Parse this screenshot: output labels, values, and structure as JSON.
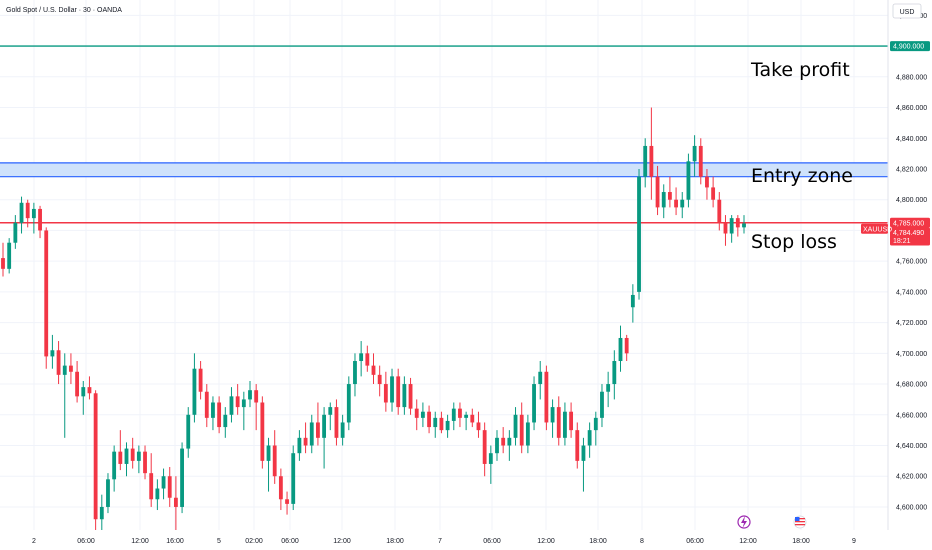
{
  "header": {
    "title": "Gold Spot / U.S. Dollar · 30 · OANDA",
    "currency": "USD"
  },
  "colors": {
    "up": "#089981",
    "down": "#f23645",
    "tp": "#089981",
    "sl": "#f23645",
    "zone_fill": "#cfe2fb",
    "zone_line": "#2962ff"
  },
  "chart_data": {
    "type": "candlestick",
    "title": "Gold Spot / U.S. Dollar · 30 · OANDA",
    "ylim": [
      4585,
      4930
    ],
    "y_ticks": [
      "4,920.000",
      "4,900.000",
      "4,880.000",
      "4,860.000",
      "4,840.000",
      "4,820.000",
      "4,800.000",
      "4,780.000",
      "4,760.000",
      "4,740.000",
      "4,720.000",
      "4,700.000",
      "4,680.000",
      "4,660.000",
      "4,640.000",
      "4,620.000",
      "4,600.000"
    ],
    "x_ticks": [
      "2",
      "06:00",
      "12:00",
      "16:00",
      "5",
      "02:00",
      "06:00",
      "12:00",
      "18:00",
      "7",
      "06:00",
      "12:00",
      "18:00",
      "8",
      "06:00",
      "12:00",
      "18:00",
      "9"
    ],
    "candles": [
      {
        "o": 4762,
        "h": 4772,
        "l": 4750,
        "c": 4755
      },
      {
        "o": 4755,
        "h": 4775,
        "l": 4752,
        "c": 4772
      },
      {
        "o": 4772,
        "h": 4790,
        "l": 4768,
        "c": 4785
      },
      {
        "o": 4785,
        "h": 4802,
        "l": 4778,
        "c": 4798
      },
      {
        "o": 4798,
        "h": 4800,
        "l": 4782,
        "c": 4788
      },
      {
        "o": 4788,
        "h": 4798,
        "l": 4778,
        "c": 4794
      },
      {
        "o": 4794,
        "h": 4796,
        "l": 4775,
        "c": 4780
      },
      {
        "o": 4780,
        "h": 4782,
        "l": 4690,
        "c": 4698
      },
      {
        "o": 4698,
        "h": 4712,
        "l": 4690,
        "c": 4702
      },
      {
        "o": 4702,
        "h": 4708,
        "l": 4680,
        "c": 4686
      },
      {
        "o": 4686,
        "h": 4700,
        "l": 4645,
        "c": 4692
      },
      {
        "o": 4692,
        "h": 4700,
        "l": 4680,
        "c": 4688
      },
      {
        "o": 4688,
        "h": 4695,
        "l": 4668,
        "c": 4672
      },
      {
        "o": 4672,
        "h": 4682,
        "l": 4660,
        "c": 4678
      },
      {
        "o": 4678,
        "h": 4685,
        "l": 4670,
        "c": 4674
      },
      {
        "o": 4674,
        "h": 4676,
        "l": 4585,
        "c": 4592
      },
      {
        "o": 4592,
        "h": 4608,
        "l": 4585,
        "c": 4600
      },
      {
        "o": 4600,
        "h": 4622,
        "l": 4596,
        "c": 4618
      },
      {
        "o": 4618,
        "h": 4640,
        "l": 4610,
        "c": 4636
      },
      {
        "o": 4636,
        "h": 4650,
        "l": 4624,
        "c": 4628
      },
      {
        "o": 4628,
        "h": 4642,
        "l": 4620,
        "c": 4638
      },
      {
        "o": 4638,
        "h": 4645,
        "l": 4625,
        "c": 4630
      },
      {
        "o": 4630,
        "h": 4640,
        "l": 4622,
        "c": 4636
      },
      {
        "o": 4636,
        "h": 4640,
        "l": 4618,
        "c": 4622
      },
      {
        "o": 4622,
        "h": 4635,
        "l": 4600,
        "c": 4605
      },
      {
        "o": 4605,
        "h": 4618,
        "l": 4598,
        "c": 4612
      },
      {
        "o": 4612,
        "h": 4625,
        "l": 4605,
        "c": 4620
      },
      {
        "o": 4620,
        "h": 4626,
        "l": 4600,
        "c": 4606
      },
      {
        "o": 4606,
        "h": 4620,
        "l": 4585,
        "c": 4600
      },
      {
        "o": 4600,
        "h": 4642,
        "l": 4596,
        "c": 4638
      },
      {
        "o": 4638,
        "h": 4665,
        "l": 4632,
        "c": 4660
      },
      {
        "o": 4660,
        "h": 4700,
        "l": 4655,
        "c": 4690
      },
      {
        "o": 4690,
        "h": 4695,
        "l": 4670,
        "c": 4675
      },
      {
        "o": 4675,
        "h": 4680,
        "l": 4652,
        "c": 4658
      },
      {
        "o": 4658,
        "h": 4672,
        "l": 4650,
        "c": 4668
      },
      {
        "o": 4668,
        "h": 4672,
        "l": 4648,
        "c": 4652
      },
      {
        "o": 4652,
        "h": 4665,
        "l": 4645,
        "c": 4660
      },
      {
        "o": 4660,
        "h": 4678,
        "l": 4655,
        "c": 4672
      },
      {
        "o": 4672,
        "h": 4680,
        "l": 4660,
        "c": 4665
      },
      {
        "o": 4665,
        "h": 4675,
        "l": 4650,
        "c": 4670
      },
      {
        "o": 4670,
        "h": 4682,
        "l": 4665,
        "c": 4676
      },
      {
        "o": 4676,
        "h": 4680,
        "l": 4650,
        "c": 4668
      },
      {
        "o": 4668,
        "h": 4672,
        "l": 4625,
        "c": 4630
      },
      {
        "o": 4630,
        "h": 4645,
        "l": 4610,
        "c": 4640
      },
      {
        "o": 4640,
        "h": 4650,
        "l": 4615,
        "c": 4620
      },
      {
        "o": 4620,
        "h": 4625,
        "l": 4598,
        "c": 4605
      },
      {
        "o": 4605,
        "h": 4610,
        "l": 4595,
        "c": 4602
      },
      {
        "o": 4602,
        "h": 4640,
        "l": 4598,
        "c": 4635
      },
      {
        "o": 4635,
        "h": 4650,
        "l": 4630,
        "c": 4645
      },
      {
        "o": 4645,
        "h": 4655,
        "l": 4635,
        "c": 4640
      },
      {
        "o": 4640,
        "h": 4660,
        "l": 4635,
        "c": 4655
      },
      {
        "o": 4655,
        "h": 4668,
        "l": 4640,
        "c": 4645
      },
      {
        "o": 4645,
        "h": 4665,
        "l": 4625,
        "c": 4660
      },
      {
        "o": 4660,
        "h": 4668,
        "l": 4650,
        "c": 4665
      },
      {
        "o": 4665,
        "h": 4670,
        "l": 4640,
        "c": 4645
      },
      {
        "o": 4645,
        "h": 4660,
        "l": 4640,
        "c": 4655
      },
      {
        "o": 4655,
        "h": 4685,
        "l": 4650,
        "c": 4680
      },
      {
        "o": 4680,
        "h": 4700,
        "l": 4672,
        "c": 4695
      },
      {
        "o": 4695,
        "h": 4708,
        "l": 4685,
        "c": 4700
      },
      {
        "o": 4700,
        "h": 4705,
        "l": 4688,
        "c": 4692
      },
      {
        "o": 4692,
        "h": 4700,
        "l": 4680,
        "c": 4686
      },
      {
        "o": 4686,
        "h": 4692,
        "l": 4672,
        "c": 4680
      },
      {
        "o": 4680,
        "h": 4688,
        "l": 4662,
        "c": 4668
      },
      {
        "o": 4668,
        "h": 4690,
        "l": 4662,
        "c": 4685
      },
      {
        "o": 4685,
        "h": 4690,
        "l": 4660,
        "c": 4665
      },
      {
        "o": 4665,
        "h": 4685,
        "l": 4660,
        "c": 4680
      },
      {
        "o": 4680,
        "h": 4684,
        "l": 4660,
        "c": 4664
      },
      {
        "o": 4664,
        "h": 4670,
        "l": 4650,
        "c": 4658
      },
      {
        "o": 4658,
        "h": 4668,
        "l": 4652,
        "c": 4662
      },
      {
        "o": 4662,
        "h": 4666,
        "l": 4648,
        "c": 4652
      },
      {
        "o": 4652,
        "h": 4662,
        "l": 4645,
        "c": 4658
      },
      {
        "o": 4658,
        "h": 4662,
        "l": 4648,
        "c": 4650
      },
      {
        "o": 4650,
        "h": 4660,
        "l": 4645,
        "c": 4656
      },
      {
        "o": 4656,
        "h": 4668,
        "l": 4650,
        "c": 4664
      },
      {
        "o": 4664,
        "h": 4668,
        "l": 4652,
        "c": 4658
      },
      {
        "o": 4658,
        "h": 4662,
        "l": 4650,
        "c": 4660
      },
      {
        "o": 4660,
        "h": 4664,
        "l": 4652,
        "c": 4655
      },
      {
        "o": 4655,
        "h": 4662,
        "l": 4645,
        "c": 4650
      },
      {
        "o": 4650,
        "h": 4655,
        "l": 4620,
        "c": 4628
      },
      {
        "o": 4628,
        "h": 4640,
        "l": 4615,
        "c": 4635
      },
      {
        "o": 4635,
        "h": 4650,
        "l": 4630,
        "c": 4645
      },
      {
        "o": 4645,
        "h": 4652,
        "l": 4635,
        "c": 4640
      },
      {
        "o": 4640,
        "h": 4650,
        "l": 4630,
        "c": 4645
      },
      {
        "o": 4645,
        "h": 4665,
        "l": 4640,
        "c": 4660
      },
      {
        "o": 4660,
        "h": 4668,
        "l": 4635,
        "c": 4640
      },
      {
        "o": 4640,
        "h": 4660,
        "l": 4635,
        "c": 4655
      },
      {
        "o": 4655,
        "h": 4685,
        "l": 4650,
        "c": 4680
      },
      {
        "o": 4680,
        "h": 4695,
        "l": 4670,
        "c": 4688
      },
      {
        "o": 4688,
        "h": 4692,
        "l": 4650,
        "c": 4655
      },
      {
        "o": 4655,
        "h": 4670,
        "l": 4645,
        "c": 4665
      },
      {
        "o": 4665,
        "h": 4672,
        "l": 4640,
        "c": 4645
      },
      {
        "o": 4645,
        "h": 4668,
        "l": 4640,
        "c": 4662
      },
      {
        "o": 4662,
        "h": 4668,
        "l": 4645,
        "c": 4650
      },
      {
        "o": 4650,
        "h": 4655,
        "l": 4625,
        "c": 4630
      },
      {
        "o": 4630,
        "h": 4645,
        "l": 4610,
        "c": 4640
      },
      {
        "o": 4640,
        "h": 4655,
        "l": 4632,
        "c": 4650
      },
      {
        "o": 4650,
        "h": 4662,
        "l": 4640,
        "c": 4658
      },
      {
        "o": 4658,
        "h": 4680,
        "l": 4652,
        "c": 4675
      },
      {
        "o": 4675,
        "h": 4688,
        "l": 4665,
        "c": 4680
      },
      {
        "o": 4680,
        "h": 4702,
        "l": 4670,
        "c": 4695
      },
      {
        "o": 4695,
        "h": 4718,
        "l": 4688,
        "c": 4710
      },
      {
        "o": 4710,
        "h": 4712,
        "l": 4695,
        "c": 4700
      },
      {
        "o": 4730,
        "h": 4745,
        "l": 4720,
        "c": 4738
      },
      {
        "o": 4740,
        "h": 4820,
        "l": 4735,
        "c": 4815
      },
      {
        "o": 4815,
        "h": 4840,
        "l": 4808,
        "c": 4835
      },
      {
        "o": 4835,
        "h": 4860,
        "l": 4800,
        "c": 4815
      },
      {
        "o": 4815,
        "h": 4822,
        "l": 4790,
        "c": 4795
      },
      {
        "o": 4795,
        "h": 4810,
        "l": 4788,
        "c": 4805
      },
      {
        "o": 4805,
        "h": 4815,
        "l": 4795,
        "c": 4800
      },
      {
        "o": 4800,
        "h": 4808,
        "l": 4790,
        "c": 4795
      },
      {
        "o": 4795,
        "h": 4805,
        "l": 4788,
        "c": 4800
      },
      {
        "o": 4800,
        "h": 4830,
        "l": 4795,
        "c": 4825
      },
      {
        "o": 4825,
        "h": 4842,
        "l": 4815,
        "c": 4835
      },
      {
        "o": 4835,
        "h": 4840,
        "l": 4810,
        "c": 4815
      },
      {
        "o": 4815,
        "h": 4820,
        "l": 4800,
        "c": 4808
      },
      {
        "o": 4808,
        "h": 4815,
        "l": 4795,
        "c": 4800
      },
      {
        "o": 4800,
        "h": 4805,
        "l": 4780,
        "c": 4785
      },
      {
        "o": 4785,
        "h": 4790,
        "l": 4770,
        "c": 4778
      },
      {
        "o": 4778,
        "h": 4790,
        "l": 4772,
        "c": 4788
      },
      {
        "o": 4788,
        "h": 4790,
        "l": 4776,
        "c": 4782
      },
      {
        "o": 4782,
        "h": 4790,
        "l": 4778,
        "c": 4784.49
      }
    ],
    "levels": [
      {
        "label": "Take profit",
        "price": 4900,
        "price_label": "4,900.000"
      },
      {
        "label": "Stop loss",
        "price": 4785,
        "price_label": "4,785.000"
      }
    ],
    "zone": {
      "label": "Entry zone",
      "low": 4815,
      "high": 4824
    },
    "last_price": {
      "symbol": "XAUUSD",
      "price_label": "4,784.490",
      "countdown": "18:21"
    }
  }
}
